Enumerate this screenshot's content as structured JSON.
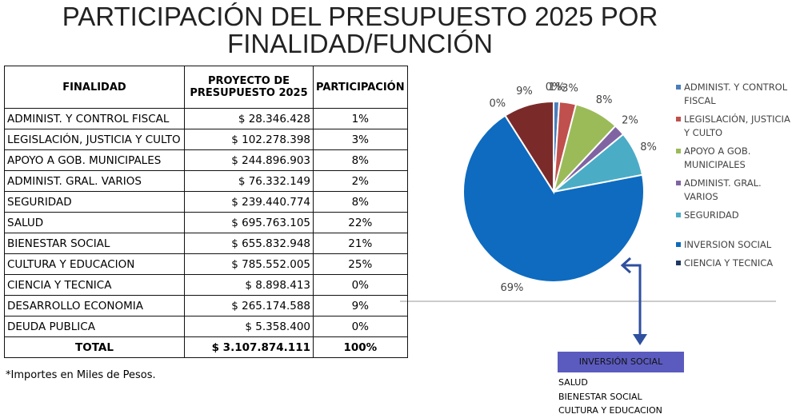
{
  "title": [
    "PARTICIPACIÓN DEL PRESUPUESTO 2025 POR",
    "FINALIDAD/FUNCIÓN"
  ],
  "table": {
    "header": [
      "FINALIDAD",
      "PROYECTO DE PRESUPUESTO 2025",
      "PARTICIPACIÓN"
    ],
    "rows": [
      [
        "ADMINIST. Y CONTROL FISCAL",
        "$ 28.346.428",
        "1%"
      ],
      [
        "LEGISLACIÓN, JUSTICIA Y CULTO",
        "$ 102.278.398",
        "3%"
      ],
      [
        "APOYO A GOB. MUNICIPALES",
        "$ 244.896.903",
        "8%"
      ],
      [
        "ADMINIST. GRAL. VARIOS",
        "$ 76.332.149",
        "2%"
      ],
      [
        "SEGURIDAD",
        "$ 239.440.774",
        "8%"
      ],
      [
        "SALUD",
        "$ 695.763.105",
        "22%"
      ],
      [
        "BIENESTAR SOCIAL",
        "$ 655.832.948",
        "21%"
      ],
      [
        "CULTURA Y EDUCACION",
        "$ 785.552.005",
        "25%"
      ],
      [
        "CIENCIA Y TECNICA",
        "$ 8.898.413",
        "0%"
      ],
      [
        "DESARROLLO ECONOMIA",
        "$ 265.174.588",
        "9%"
      ],
      [
        "DEUDA PUBLICA",
        "$ 5.358.400",
        "0%"
      ]
    ],
    "total": [
      "TOTAL",
      "$ 3.107.874.111",
      "100%"
    ]
  },
  "note": "*Importes en Miles de Pesos.",
  "chart_data": {
    "type": "pie",
    "categories": [
      "ADMINIST. Y CONTROL FISCAL",
      "LEGISLACIÓN, JUSTICIA Y CULTO",
      "APOYO A GOB. MUNICIPALES",
      "ADMINIST. GRAL. VARIOS",
      "SEGURIDAD",
      "INVERSION SOCIAL",
      "CIENCIA Y TECNICA",
      null,
      null
    ],
    "values": [
      1,
      3,
      8,
      2,
      8,
      69,
      0,
      9,
      0
    ],
    "value_labels": [
      "1%",
      "3%",
      "8%",
      "2%",
      "8%",
      "69%",
      "0%",
      "9%",
      "0%"
    ],
    "colors": [
      "#4a7ebb",
      "#c0504d",
      "#9bbb59",
      "#8064a2",
      "#4bacc6",
      "#0e6bbf",
      "#1f3864",
      "#7b2a2a",
      "#3f3f7f"
    ]
  },
  "inversion_box": {
    "title": "INVERSIÓN SOCIAL",
    "items": [
      "SALUD",
      "BIENESTAR SOCIAL",
      "CULTURA Y EDUCACION"
    ]
  }
}
